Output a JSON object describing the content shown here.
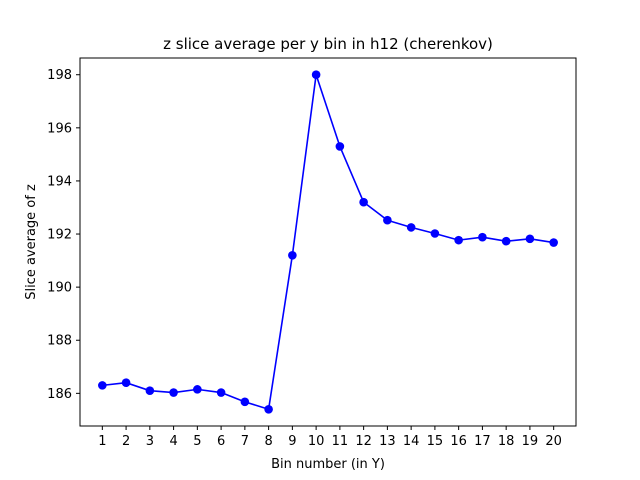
{
  "chart_data": {
    "type": "line",
    "title": "z slice average per y bin in h12 (cherenkov)",
    "xlabel": "Bin number (in Y)",
    "ylabel": "Slice average of z",
    "x": [
      1,
      2,
      3,
      4,
      5,
      6,
      7,
      8,
      9,
      10,
      11,
      12,
      13,
      14,
      15,
      16,
      17,
      18,
      19,
      20
    ],
    "y": [
      186.3,
      186.4,
      186.1,
      186.03,
      186.15,
      186.03,
      185.68,
      185.4,
      191.2,
      198.0,
      195.3,
      193.2,
      192.52,
      192.25,
      192.02,
      191.77,
      191.88,
      191.73,
      191.82,
      191.68
    ],
    "xticks": [
      "1",
      "2",
      "3",
      "4",
      "5",
      "6",
      "7",
      "8",
      "9",
      "10",
      "11",
      "12",
      "13",
      "14",
      "15",
      "16",
      "17",
      "18",
      "19",
      "20"
    ],
    "yticks": [
      "186",
      "188",
      "190",
      "192",
      "194",
      "196",
      "198"
    ],
    "xlim": [
      0.06,
      20.94
    ],
    "ylim": [
      184.77,
      198.63
    ],
    "marker": "circle",
    "color": "#0000ff",
    "grid": false,
    "legend": "none"
  }
}
